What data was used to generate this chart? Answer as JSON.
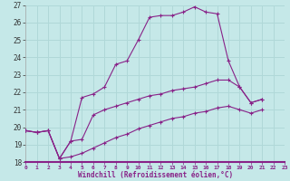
{
  "xlabel": "Windchill (Refroidissement éolien,°C)",
  "xlim": [
    0,
    23
  ],
  "ylim": [
    18,
    27
  ],
  "yticks": [
    18,
    19,
    20,
    21,
    22,
    23,
    24,
    25,
    26,
    27
  ],
  "xticks": [
    0,
    1,
    2,
    3,
    4,
    5,
    6,
    7,
    8,
    9,
    10,
    11,
    12,
    13,
    14,
    15,
    16,
    17,
    18,
    19,
    20,
    21,
    22,
    23
  ],
  "background_color": "#c5e8e8",
  "line_color": "#882288",
  "grid_color": "#b0d8d8",
  "series": [
    {
      "x": [
        0,
        1,
        2,
        3,
        4,
        5,
        6,
        7,
        8,
        9,
        10,
        11,
        12,
        13,
        14,
        15,
        16,
        17,
        18,
        19,
        20,
        21
      ],
      "y": [
        19.8,
        19.7,
        19.8,
        18.2,
        19.2,
        21.7,
        21.9,
        22.3,
        23.6,
        23.8,
        25.0,
        26.3,
        26.4,
        26.4,
        26.6,
        26.9,
        26.6,
        26.5,
        23.8,
        22.3,
        21.4,
        21.6
      ]
    },
    {
      "x": [
        0,
        1,
        2,
        3,
        4,
        5,
        6,
        7,
        8,
        9,
        10,
        11,
        12,
        13,
        14,
        15,
        16,
        17,
        18,
        19,
        20,
        21
      ],
      "y": [
        19.8,
        19.7,
        19.8,
        18.2,
        19.2,
        19.3,
        20.7,
        21.0,
        21.2,
        21.4,
        21.6,
        21.8,
        21.9,
        22.1,
        22.2,
        22.3,
        22.5,
        22.7,
        22.7,
        22.3,
        21.4,
        21.6
      ]
    },
    {
      "x": [
        0,
        1,
        2,
        3,
        4,
        5,
        6,
        7,
        8,
        9,
        10,
        11,
        12,
        13,
        14,
        15,
        16,
        17,
        18,
        19,
        20,
        21
      ],
      "y": [
        19.8,
        19.7,
        19.8,
        18.2,
        18.3,
        18.5,
        18.8,
        19.1,
        19.4,
        19.6,
        19.9,
        20.1,
        20.3,
        20.5,
        20.6,
        20.8,
        20.9,
        21.1,
        21.2,
        21.0,
        20.8,
        21.0
      ]
    }
  ]
}
